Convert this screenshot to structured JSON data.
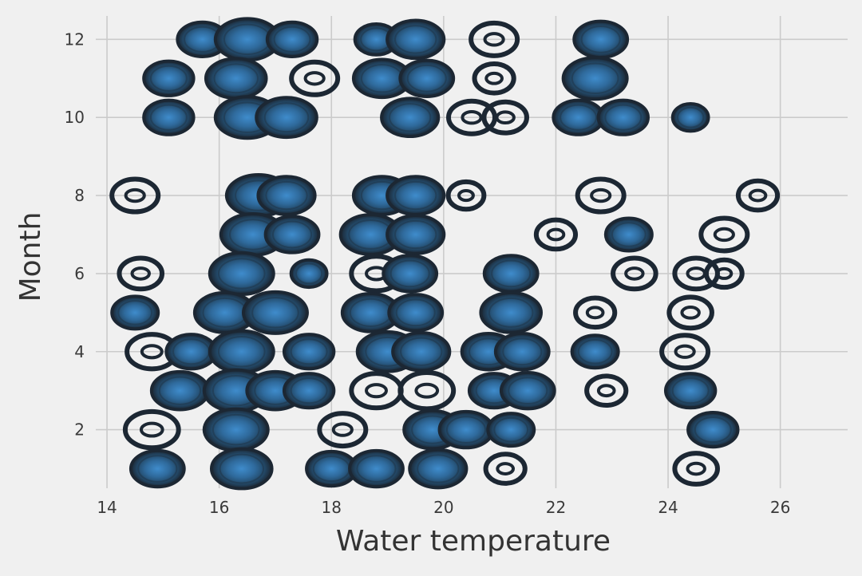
{
  "chart_data": {
    "type": "heatmap",
    "subtype": "kde-contour",
    "title": "",
    "xlabel": "Water temperature",
    "ylabel": "Month",
    "xlim": [
      13.8,
      27.2
    ],
    "ylim": [
      0.5,
      12.6
    ],
    "x_ticks": [
      14,
      16,
      18,
      20,
      22,
      24,
      26
    ],
    "y_ticks": [
      2,
      4,
      6,
      8,
      10,
      12
    ],
    "x_tick_labels": [
      "14",
      "16",
      "18",
      "20",
      "22",
      "24",
      "26"
    ],
    "y_tick_labels": [
      "2",
      "4",
      "6",
      "8",
      "10",
      "12"
    ],
    "grid": true,
    "colors": {
      "background": "#f0f0f0",
      "grid": "#cbcbcb",
      "contour_outer": "#1c2733",
      "contour_inner": "#3f8ccc"
    },
    "observations": [
      {
        "month": 12,
        "temp": 15.7,
        "weight": 0.6
      },
      {
        "month": 12,
        "temp": 16.5,
        "weight": 1.0
      },
      {
        "month": 12,
        "temp": 17.3,
        "weight": 0.6
      },
      {
        "month": 12,
        "temp": 18.8,
        "weight": 0.4
      },
      {
        "month": 12,
        "temp": 19.5,
        "weight": 0.8
      },
      {
        "month": 12,
        "temp": 20.9,
        "weight": 0.5,
        "hollow": true
      },
      {
        "month": 12,
        "temp": 22.8,
        "weight": 0.7
      },
      {
        "month": 11,
        "temp": 15.1,
        "weight": 0.6
      },
      {
        "month": 11,
        "temp": 16.3,
        "weight": 0.9
      },
      {
        "month": 11,
        "temp": 17.7,
        "weight": 0.5,
        "hollow": true
      },
      {
        "month": 11,
        "temp": 18.9,
        "weight": 0.8
      },
      {
        "month": 11,
        "temp": 19.7,
        "weight": 0.7
      },
      {
        "month": 11,
        "temp": 20.9,
        "weight": 0.3,
        "hollow": true
      },
      {
        "month": 11,
        "temp": 22.7,
        "weight": 1.0
      },
      {
        "month": 10,
        "temp": 15.1,
        "weight": 0.6
      },
      {
        "month": 10,
        "temp": 16.5,
        "weight": 1.0
      },
      {
        "month": 10,
        "temp": 17.2,
        "weight": 0.9
      },
      {
        "month": 10,
        "temp": 19.4,
        "weight": 0.8
      },
      {
        "month": 10,
        "temp": 20.5,
        "weight": 0.5,
        "hollow": true
      },
      {
        "month": 10,
        "temp": 21.1,
        "weight": 0.4,
        "hollow": true
      },
      {
        "month": 10,
        "temp": 22.4,
        "weight": 0.6
      },
      {
        "month": 10,
        "temp": 23.2,
        "weight": 0.6
      },
      {
        "month": 10,
        "temp": 24.4,
        "weight": 0.2
      },
      {
        "month": 8,
        "temp": 14.5,
        "weight": 0.5,
        "hollow": true
      },
      {
        "month": 8,
        "temp": 16.7,
        "weight": 1.0
      },
      {
        "month": 8,
        "temp": 17.2,
        "weight": 0.8
      },
      {
        "month": 8,
        "temp": 18.9,
        "weight": 0.8
      },
      {
        "month": 8,
        "temp": 19.5,
        "weight": 0.8
      },
      {
        "month": 8,
        "temp": 20.4,
        "weight": 0.2,
        "hollow": true
      },
      {
        "month": 8,
        "temp": 22.8,
        "weight": 0.5,
        "hollow": true
      },
      {
        "month": 8,
        "temp": 25.6,
        "weight": 0.3,
        "hollow": true
      },
      {
        "month": 7,
        "temp": 16.6,
        "weight": 1.0
      },
      {
        "month": 7,
        "temp": 17.3,
        "weight": 0.7
      },
      {
        "month": 7,
        "temp": 18.7,
        "weight": 0.9
      },
      {
        "month": 7,
        "temp": 19.5,
        "weight": 0.8
      },
      {
        "month": 7,
        "temp": 22.0,
        "weight": 0.3,
        "hollow": true
      },
      {
        "month": 7,
        "temp": 23.3,
        "weight": 0.5
      },
      {
        "month": 7,
        "temp": 25.0,
        "weight": 0.5,
        "hollow": true
      },
      {
        "month": 6,
        "temp": 14.6,
        "weight": 0.4,
        "hollow": true
      },
      {
        "month": 6,
        "temp": 16.4,
        "weight": 1.0
      },
      {
        "month": 6,
        "temp": 17.6,
        "weight": 0.2
      },
      {
        "month": 6,
        "temp": 18.8,
        "weight": 0.6,
        "hollow": true
      },
      {
        "month": 6,
        "temp": 19.4,
        "weight": 0.7
      },
      {
        "month": 6,
        "temp": 21.2,
        "weight": 0.7
      },
      {
        "month": 6,
        "temp": 23.4,
        "weight": 0.4,
        "hollow": true
      },
      {
        "month": 6,
        "temp": 24.5,
        "weight": 0.4,
        "hollow": true
      },
      {
        "month": 6,
        "temp": 25.0,
        "weight": 0.2,
        "hollow": true
      },
      {
        "month": 5,
        "temp": 14.5,
        "weight": 0.5
      },
      {
        "month": 5,
        "temp": 16.1,
        "weight": 0.9
      },
      {
        "month": 5,
        "temp": 17.0,
        "weight": 1.0
      },
      {
        "month": 5,
        "temp": 18.7,
        "weight": 0.8
      },
      {
        "month": 5,
        "temp": 19.5,
        "weight": 0.7
      },
      {
        "month": 5,
        "temp": 21.2,
        "weight": 0.9
      },
      {
        "month": 5,
        "temp": 22.7,
        "weight": 0.3,
        "hollow": true
      },
      {
        "month": 5,
        "temp": 24.4,
        "weight": 0.4,
        "hollow": true
      },
      {
        "month": 4,
        "temp": 14.8,
        "weight": 0.6,
        "hollow": true
      },
      {
        "month": 4,
        "temp": 15.5,
        "weight": 0.6
      },
      {
        "month": 4,
        "temp": 16.4,
        "weight": 1.0
      },
      {
        "month": 4,
        "temp": 17.6,
        "weight": 0.6
      },
      {
        "month": 4,
        "temp": 19.0,
        "weight": 0.9
      },
      {
        "month": 4,
        "temp": 19.6,
        "weight": 0.8
      },
      {
        "month": 4,
        "temp": 20.8,
        "weight": 0.7
      },
      {
        "month": 4,
        "temp": 21.4,
        "weight": 0.7
      },
      {
        "month": 4,
        "temp": 22.7,
        "weight": 0.5
      },
      {
        "month": 4,
        "temp": 24.3,
        "weight": 0.5,
        "hollow": true
      },
      {
        "month": 3,
        "temp": 15.3,
        "weight": 0.8
      },
      {
        "month": 3,
        "temp": 16.3,
        "weight": 1.0
      },
      {
        "month": 3,
        "temp": 17.0,
        "weight": 0.8
      },
      {
        "month": 3,
        "temp": 17.6,
        "weight": 0.6
      },
      {
        "month": 3,
        "temp": 18.8,
        "weight": 0.6,
        "hollow": true
      },
      {
        "month": 3,
        "temp": 19.7,
        "weight": 0.7,
        "hollow": true
      },
      {
        "month": 3,
        "temp": 20.9,
        "weight": 0.6
      },
      {
        "month": 3,
        "temp": 21.5,
        "weight": 0.7
      },
      {
        "month": 3,
        "temp": 22.9,
        "weight": 0.3,
        "hollow": true
      },
      {
        "month": 3,
        "temp": 24.4,
        "weight": 0.6
      },
      {
        "month": 2,
        "temp": 14.8,
        "weight": 0.7,
        "hollow": true
      },
      {
        "month": 2,
        "temp": 16.3,
        "weight": 1.0
      },
      {
        "month": 2,
        "temp": 18.2,
        "weight": 0.5,
        "hollow": true
      },
      {
        "month": 2,
        "temp": 19.8,
        "weight": 0.8
      },
      {
        "month": 2,
        "temp": 20.4,
        "weight": 0.7
      },
      {
        "month": 2,
        "temp": 21.2,
        "weight": 0.5
      },
      {
        "month": 2,
        "temp": 24.8,
        "weight": 0.6
      },
      {
        "month": 1,
        "temp": 14.9,
        "weight": 0.7
      },
      {
        "month": 1,
        "temp": 16.4,
        "weight": 0.9
      },
      {
        "month": 1,
        "temp": 18.0,
        "weight": 0.6
      },
      {
        "month": 1,
        "temp": 18.8,
        "weight": 0.7
      },
      {
        "month": 1,
        "temp": 19.9,
        "weight": 0.8
      },
      {
        "month": 1,
        "temp": 21.1,
        "weight": 0.3,
        "hollow": true
      },
      {
        "month": 1,
        "temp": 24.5,
        "weight": 0.4,
        "hollow": true
      }
    ]
  }
}
